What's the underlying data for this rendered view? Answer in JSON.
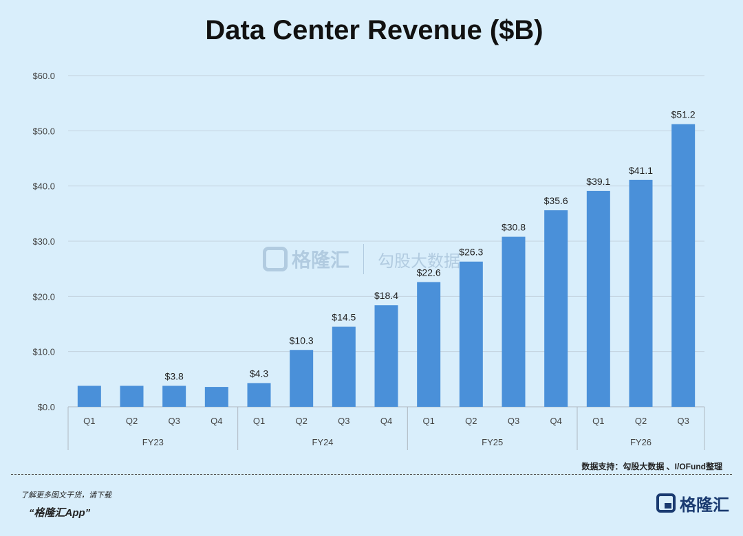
{
  "chart_data": {
    "type": "bar",
    "title": "Data Center Revenue ($B)",
    "categories": [
      "Q1",
      "Q2",
      "Q3",
      "Q4",
      "Q1",
      "Q2",
      "Q3",
      "Q4",
      "Q1",
      "Q2",
      "Q3",
      "Q4",
      "Q1",
      "Q2",
      "Q3"
    ],
    "groups": [
      {
        "label": "FY23",
        "count": 4
      },
      {
        "label": "FY24",
        "count": 4
      },
      {
        "label": "FY25",
        "count": 4
      },
      {
        "label": "FY26",
        "count": 3
      }
    ],
    "values": [
      3.8,
      3.8,
      3.8,
      3.6,
      4.3,
      10.3,
      14.5,
      18.4,
      22.6,
      26.3,
      30.8,
      35.6,
      39.1,
      41.1,
      51.2
    ],
    "data_labels": [
      "",
      "",
      "$3.8",
      "",
      "$4.3",
      "$10.3",
      "$14.5",
      "$18.4",
      "$22.6",
      "$26.3",
      "$30.8",
      "$35.6",
      "$39.1",
      "$41.1",
      "$51.2"
    ],
    "yticks": [
      "$0.0",
      "$10.0",
      "$20.0",
      "$30.0",
      "$40.0",
      "$50.0",
      "$60.0"
    ],
    "ylim": [
      0,
      60
    ],
    "grid": true,
    "bar_color": "#4a90d9"
  },
  "source_note": "数据支持：勾股大数据 、I/OFund整理",
  "watermark": {
    "brand": "格隆汇",
    "tag": "勾股大数据"
  },
  "footer": {
    "promo_line1": "了解更多图文干货，请下载",
    "promo_line2": "“格隆汇App”",
    "logo_text": "格隆汇"
  }
}
